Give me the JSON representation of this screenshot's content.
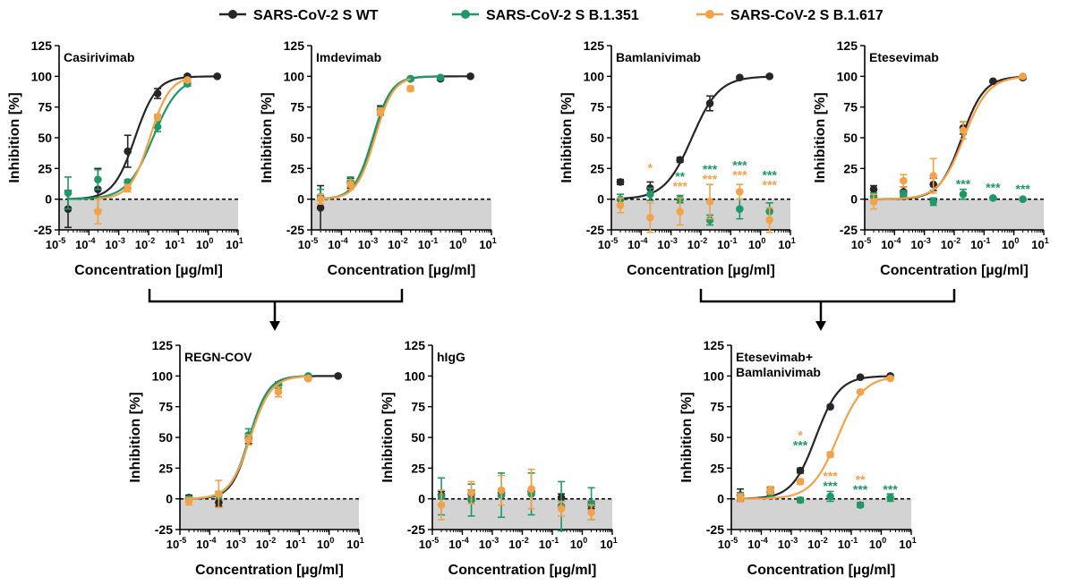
{
  "legend": [
    {
      "name": "SARS-CoV-2 S WT",
      "color": "#262626"
    },
    {
      "name": "SARS-CoV-2 S B.1.351",
      "color": "#1e9966"
    },
    {
      "name": "SARS-CoV-2 S B.1.617",
      "color": "#f4a24a"
    }
  ],
  "colors": {
    "wt": "#262626",
    "b1351": "#1e9966",
    "b1617": "#f4a24a",
    "negative_band": "#d3d3d3",
    "arrow": "#000000"
  },
  "chart_data": [
    {
      "type": "scatter",
      "panel": "Casirivimab",
      "title": "Casirivimab",
      "xlabel": "Concentration [µg/ml]",
      "ylabel": "Inhibition [%]",
      "xscale": "log",
      "xlim": [
        1e-05,
        10
      ],
      "ylim": [
        -25,
        125
      ],
      "xticks": [
        "10-5",
        "10-4",
        "10-3",
        "10-2",
        "10-1",
        "100",
        "101"
      ],
      "yticks": [
        -25,
        0,
        25,
        50,
        75,
        100,
        125
      ],
      "reference_line": 0,
      "series": [
        {
          "name": "SARS-CoV-2 S WT",
          "color": "#262626",
          "x": [
            2e-05,
            0.0002,
            0.002,
            0.02,
            0.2,
            2
          ],
          "y": [
            -8,
            8,
            39,
            86,
            100,
            100
          ],
          "err": [
            15,
            17,
            13,
            4,
            1,
            1
          ],
          "fit": {
            "ic50": 0.0035,
            "hill": 1.2
          }
        },
        {
          "name": "SARS-CoV-2 S B.1.351",
          "color": "#1e9966",
          "x": [
            2e-05,
            0.0002,
            0.002,
            0.02,
            0.2
          ],
          "y": [
            5,
            16,
            14,
            59,
            94
          ],
          "err": [
            13,
            8,
            2,
            4,
            2
          ],
          "fit": {
            "ic50": 0.014,
            "hill": 1.0
          }
        },
        {
          "name": "SARS-CoV-2 S B.1.617",
          "color": "#f4a24a",
          "x": [
            0.0002,
            0.002,
            0.02,
            0.2
          ],
          "y": [
            -10,
            9,
            67,
            97
          ],
          "err": [
            10,
            3,
            2,
            1
          ],
          "fit": {
            "ic50": 0.011,
            "hill": 1.3
          }
        }
      ]
    },
    {
      "type": "scatter",
      "panel": "Imdevimab",
      "title": "Imdevimab",
      "xlabel": "Concentration [µg/ml]",
      "ylabel": "Inhibition [%]",
      "xscale": "log",
      "xlim": [
        1e-05,
        10
      ],
      "ylim": [
        -25,
        125
      ],
      "xticks": [
        "10-5",
        "10-4",
        "10-3",
        "10-2",
        "10-1",
        "100",
        "101"
      ],
      "yticks": [
        -25,
        0,
        25,
        50,
        75,
        100,
        125
      ],
      "reference_line": 0,
      "series": [
        {
          "name": "SARS-CoV-2 S WT",
          "color": "#262626",
          "x": [
            2e-05,
            0.0002,
            0.002,
            0.02,
            0.2,
            2
          ],
          "y": [
            -7,
            13,
            73,
            98,
            98,
            100
          ],
          "err": [
            18,
            4,
            3,
            1,
            1,
            1
          ],
          "fit": {
            "ic50": 0.0012,
            "hill": 1.4
          }
        },
        {
          "name": "SARS-CoV-2 S B.1.351",
          "color": "#1e9966",
          "x": [
            2e-05,
            0.0002,
            0.002,
            0.02,
            0.2
          ],
          "y": [
            2,
            14,
            72,
            98,
            99
          ],
          "err": [
            6,
            4,
            3,
            1,
            1
          ],
          "fit": {
            "ic50": 0.0011,
            "hill": 1.4
          }
        },
        {
          "name": "SARS-CoV-2 S B.1.617",
          "color": "#f4a24a",
          "x": [
            2e-05,
            0.0002,
            0.002,
            0.02
          ],
          "y": [
            0,
            12,
            71,
            90
          ],
          "err": [
            4,
            4,
            3,
            2
          ],
          "fit": {
            "ic50": 0.0013,
            "hill": 1.4
          }
        }
      ]
    },
    {
      "type": "scatter",
      "panel": "Bamlanivimab",
      "title": "Bamlanivimab",
      "xlabel": "Concentration [µg/ml]",
      "ylabel": "Inhibition [%]",
      "xscale": "log",
      "xlim": [
        1e-05,
        10
      ],
      "ylim": [
        -25,
        125
      ],
      "xticks": [
        "10-5",
        "10-4",
        "10-3",
        "10-2",
        "10-1",
        "100",
        "101"
      ],
      "yticks": [
        -25,
        0,
        25,
        50,
        75,
        100,
        125
      ],
      "reference_line": 0,
      "series": [
        {
          "name": "SARS-CoV-2 S WT",
          "color": "#262626",
          "x": [
            2e-05,
            0.0002,
            0.002,
            0.02,
            0.2,
            2
          ],
          "y": [
            14,
            9,
            32,
            78,
            99,
            100
          ],
          "err": [
            2,
            5,
            2,
            6,
            1,
            1
          ],
          "fit": {
            "ic50": 0.005,
            "hill": 0.95
          }
        },
        {
          "name": "SARS-CoV-2 S B.1.351",
          "color": "#1e9966",
          "x": [
            2e-05,
            0.0002,
            0.002,
            0.02,
            0.2,
            2
          ],
          "y": [
            0,
            4,
            0,
            -17,
            -8,
            -10
          ],
          "err": [
            4,
            5,
            3,
            4,
            8,
            7
          ],
          "fit": null
        },
        {
          "name": "SARS-CoV-2 S B.1.617",
          "color": "#f4a24a",
          "x": [
            2e-05,
            0.0002,
            0.002,
            0.02,
            0.2,
            2
          ],
          "y": [
            -5,
            -15,
            -10,
            -2,
            6,
            -17
          ],
          "err": [
            6,
            12,
            11,
            14,
            6,
            10
          ],
          "fit": null
        }
      ],
      "annotations": [
        {
          "x": 0.0002,
          "y": 22,
          "text": "*",
          "color": "#f4a24a"
        },
        {
          "x": 0.002,
          "y": 15,
          "text": "**",
          "color": "#1e9966"
        },
        {
          "x": 0.002,
          "y": 7,
          "text": "***",
          "color": "#f4a24a"
        },
        {
          "x": 0.02,
          "y": 21,
          "text": "***",
          "color": "#1e9966"
        },
        {
          "x": 0.02,
          "y": 13,
          "text": "***",
          "color": "#f4a24a"
        },
        {
          "x": 0.2,
          "y": 24,
          "text": "***",
          "color": "#1e9966"
        },
        {
          "x": 0.2,
          "y": 16,
          "text": "***",
          "color": "#f4a24a"
        },
        {
          "x": 2,
          "y": 16,
          "text": "***",
          "color": "#1e9966"
        },
        {
          "x": 2,
          "y": 8,
          "text": "***",
          "color": "#f4a24a"
        }
      ]
    },
    {
      "type": "scatter",
      "panel": "Etesevimab",
      "title": "Etesevimab",
      "xlabel": "Concentration [µg/ml]",
      "ylabel": "Inhibition [%]",
      "xscale": "log",
      "xlim": [
        1e-05,
        10
      ],
      "ylim": [
        -25,
        125
      ],
      "xticks": [
        "10-5",
        "10-4",
        "10-3",
        "10-2",
        "10-1",
        "100",
        "101"
      ],
      "yticks": [
        -25,
        0,
        25,
        50,
        75,
        100,
        125
      ],
      "reference_line": 0,
      "series": [
        {
          "name": "SARS-CoV-2 S WT",
          "color": "#262626",
          "x": [
            2e-05,
            0.0002,
            0.002,
            0.02,
            0.2,
            2
          ],
          "y": [
            8,
            6,
            12,
            58,
            96,
            99
          ],
          "err": [
            3,
            4,
            5,
            5,
            1,
            1
          ],
          "fit": {
            "ic50": 0.018,
            "hill": 1.15
          }
        },
        {
          "name": "SARS-CoV-2 S B.1.351",
          "color": "#1e9966",
          "x": [
            2e-05,
            0.0002,
            0.002,
            0.02,
            0.2,
            2
          ],
          "y": [
            2,
            4,
            -2,
            4,
            1,
            0
          ],
          "err": [
            3,
            3,
            3,
            4,
            1,
            1
          ],
          "fit": null
        },
        {
          "name": "SARS-CoV-2 S B.1.617",
          "color": "#f4a24a",
          "x": [
            2e-05,
            0.0002,
            0.002,
            0.02,
            2
          ],
          "y": [
            -2,
            15,
            19,
            56,
            100
          ],
          "err": [
            6,
            5,
            14,
            7,
            1
          ],
          "fit": {
            "ic50": 0.021,
            "hill": 1.05
          }
        }
      ],
      "annotations": [
        {
          "x": 0.02,
          "y": 9,
          "text": "***",
          "color": "#1e9966"
        },
        {
          "x": 0.2,
          "y": 6,
          "text": "***",
          "color": "#1e9966"
        },
        {
          "x": 2,
          "y": 5,
          "text": "***",
          "color": "#1e9966"
        }
      ]
    },
    {
      "type": "scatter",
      "panel": "REGN-COV",
      "title": "REGN-COV",
      "xlabel": "Concentration [µg/ml]",
      "ylabel": "Inhibition [%]",
      "xscale": "log",
      "xlim": [
        1e-05,
        10
      ],
      "ylim": [
        -25,
        125
      ],
      "xticks": [
        "10-5",
        "10-4",
        "10-3",
        "10-2",
        "10-1",
        "100",
        "101"
      ],
      "yticks": [
        -25,
        0,
        25,
        50,
        75,
        100,
        125
      ],
      "reference_line": 0,
      "series": [
        {
          "name": "SARS-CoV-2 S WT",
          "color": "#262626",
          "x": [
            2e-05,
            0.0002,
            0.002,
            0.02,
            0.2,
            2
          ],
          "y": [
            1,
            -3,
            49,
            93,
            98,
            100
          ],
          "err": [
            2,
            3,
            4,
            2,
            1,
            1
          ],
          "fit": {
            "ic50": 0.0022,
            "hill": 1.4
          }
        },
        {
          "name": "SARS-CoV-2 S B.1.351",
          "color": "#1e9966",
          "x": [
            2e-05,
            0.0002,
            0.002,
            0.02,
            0.2
          ],
          "y": [
            0,
            3,
            52,
            92,
            100
          ],
          "err": [
            2,
            3,
            5,
            2,
            1
          ],
          "fit": {
            "ic50": 0.0021,
            "hill": 1.35
          }
        },
        {
          "name": "SARS-CoV-2 S B.1.617",
          "color": "#f4a24a",
          "x": [
            2e-05,
            0.0002,
            0.002,
            0.02,
            0.2
          ],
          "y": [
            -2,
            4,
            48,
            87,
            98
          ],
          "err": [
            3,
            11,
            4,
            4,
            1
          ],
          "fit": {
            "ic50": 0.0023,
            "hill": 1.25
          }
        }
      ]
    },
    {
      "type": "scatter",
      "panel": "hIgG",
      "title": "hIgG",
      "xlabel": "Concentration [µg/ml]",
      "ylabel": "Inhibition [%]",
      "xscale": "log",
      "xlim": [
        1e-05,
        10
      ],
      "ylim": [
        -25,
        125
      ],
      "xticks": [
        "10-5",
        "10-4",
        "10-3",
        "10-2",
        "10-1",
        "100",
        "101"
      ],
      "yticks": [
        -25,
        0,
        25,
        50,
        75,
        100,
        125
      ],
      "reference_line": 0,
      "series": [
        {
          "name": "SARS-CoV-2 S WT",
          "color": "#262626",
          "x": [
            2e-05,
            0.0002,
            0.002,
            0.02,
            0.2,
            2
          ],
          "y": [
            3,
            4,
            5,
            6,
            1,
            -5
          ],
          "err": [
            3,
            3,
            3,
            3,
            3,
            3
          ],
          "fit": null
        },
        {
          "name": "SARS-CoV-2 S B.1.351",
          "color": "#1e9966",
          "x": [
            2e-05,
            0.0002,
            0.002,
            0.02,
            0.2,
            2
          ],
          "y": [
            2,
            -1,
            3,
            4,
            -6,
            -4
          ],
          "err": [
            15,
            13,
            18,
            17,
            20,
            13
          ],
          "fit": null
        },
        {
          "name": "SARS-CoV-2 S B.1.617",
          "color": "#f4a24a",
          "x": [
            2e-05,
            0.0002,
            0.002,
            0.02,
            0.2,
            2
          ],
          "y": [
            -5,
            5,
            7,
            8,
            -8,
            -11
          ],
          "err": [
            12,
            9,
            12,
            16,
            6,
            6
          ],
          "fit": null
        }
      ]
    },
    {
      "type": "scatter",
      "panel": "Etesevimab+Bamlanivimab",
      "title": [
        "Etesevimab+",
        "Bamlanivimab"
      ],
      "xlabel": "Concentration [µg/ml]",
      "ylabel": "Inhibition [%]",
      "xscale": "log",
      "xlim": [
        1e-05,
        10
      ],
      "ylim": [
        -25,
        125
      ],
      "xticks": [
        "10-5",
        "10-4",
        "10-3",
        "10-2",
        "10-1",
        "100",
        "101"
      ],
      "yticks": [
        -25,
        0,
        25,
        50,
        75,
        100,
        125
      ],
      "reference_line": 0,
      "series": [
        {
          "name": "SARS-CoV-2 S WT",
          "color": "#262626",
          "x": [
            2e-05,
            0.0002,
            0.002,
            0.02,
            0.2,
            2
          ],
          "y": [
            3,
            6,
            23,
            75,
            99,
            100
          ],
          "err": [
            5,
            3,
            2,
            1,
            1,
            1
          ],
          "fit": {
            "ic50": 0.0065,
            "hill": 1.1
          }
        },
        {
          "name": "SARS-CoV-2 S B.1.351",
          "color": "#1e9966",
          "x": [
            2e-05,
            0.0002,
            0.002,
            0.02,
            0.2,
            2
          ],
          "y": [
            2,
            5,
            -1,
            2,
            -5,
            1
          ],
          "err": [
            3,
            3,
            2,
            4,
            2,
            3
          ],
          "fit": null
        },
        {
          "name": "SARS-CoV-2 S B.1.617",
          "color": "#f4a24a",
          "x": [
            2e-05,
            0.0002,
            0.002,
            0.02,
            0.2,
            2
          ],
          "y": [
            1,
            7,
            14,
            36,
            87,
            98
          ],
          "err": [
            3,
            3,
            2,
            2,
            1,
            1
          ],
          "fit": {
            "ic50": 0.035,
            "hill": 1.0
          }
        }
      ],
      "annotations": [
        {
          "x": 0.002,
          "y": 48,
          "text": "*",
          "color": "#f4a24a"
        },
        {
          "x": 0.002,
          "y": 40,
          "text": "***",
          "color": "#1e9966"
        },
        {
          "x": 0.02,
          "y": 15,
          "text": "***",
          "color": "#f4a24a"
        },
        {
          "x": 0.02,
          "y": 7,
          "text": "***",
          "color": "#1e9966"
        },
        {
          "x": 0.2,
          "y": 12,
          "text": "**",
          "color": "#f4a24a"
        },
        {
          "x": 0.2,
          "y": 4,
          "text": "***",
          "color": "#1e9966"
        },
        {
          "x": 2,
          "y": 4,
          "text": "***",
          "color": "#1e9966"
        }
      ]
    }
  ]
}
